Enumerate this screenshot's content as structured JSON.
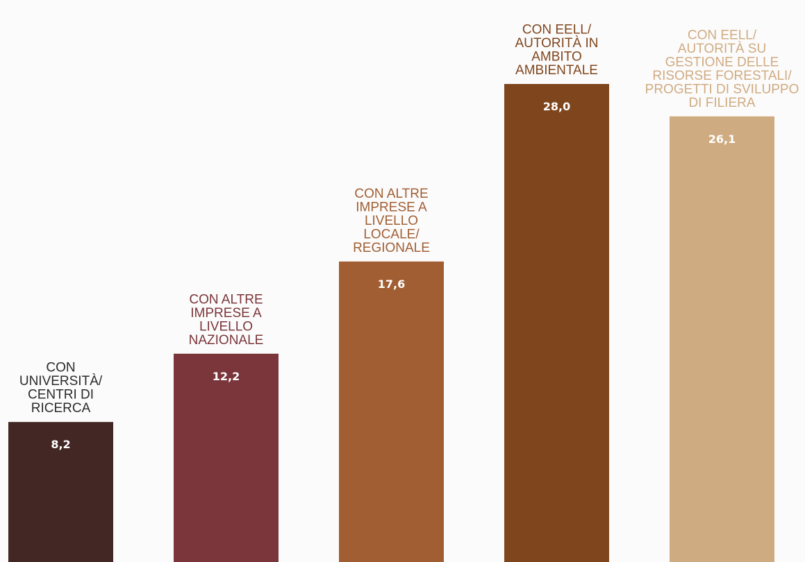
{
  "chart_data": {
    "type": "bar",
    "categories": [
      [
        "CON",
        "UNIVERSITÀ/",
        "CENTRI DI",
        "RICERCA"
      ],
      [
        "CON ALTRE",
        "IMPRESE A",
        "LIVELLO",
        "NAZIONALE"
      ],
      [
        "CON ALTRE",
        "IMPRESE A",
        "LIVELLO",
        "LOCALE/",
        "REGIONALE"
      ],
      [
        "CON EELL/",
        "AUTORITÀ IN",
        "AMBITO",
        "AMBIENTALE"
      ],
      [
        "CON EELL/",
        "AUTORITÀ SU",
        "GESTIONE DELLE",
        "RISORSE FORESTALI/",
        "PROGETTI DI SVILUPPO",
        "DI FILIERA"
      ]
    ],
    "values": [
      8.2,
      12.2,
      17.6,
      28.0,
      26.1
    ],
    "value_labels": [
      "8,2",
      "12,2",
      "17,6",
      "28,0",
      "26,1"
    ],
    "colors": [
      "#432724",
      "#7a363a",
      "#a05e32",
      "#7f461d",
      "#cfab81"
    ],
    "label_colors": [
      "#2a2a2a",
      "#7a363a",
      "#a05e32",
      "#7f461d",
      "#cfab81"
    ],
    "ylim": [
      0,
      28.0
    ],
    "grid": false,
    "legend": "none"
  }
}
